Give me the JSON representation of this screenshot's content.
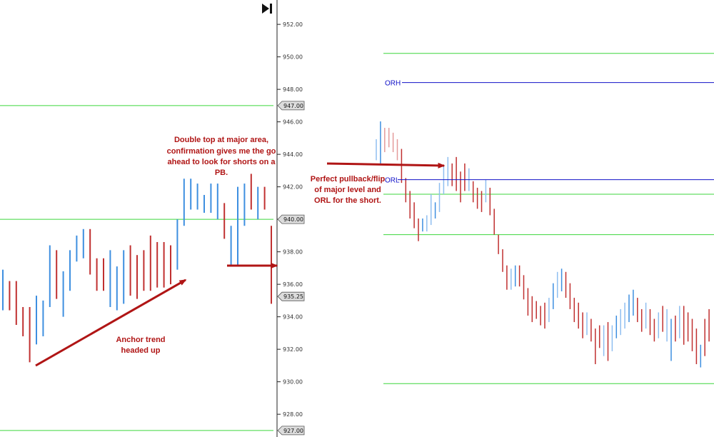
{
  "colors": {
    "up_bar": "#3e8fe0",
    "down_bar": "#c03030",
    "up_bar_light": "#8fbef0",
    "down_bar_light": "#e49a9a",
    "support_line": "#3cd63c",
    "or_line": "#1010c8",
    "annotation": "#b01515",
    "axis": "#222222"
  },
  "toolbar": {
    "icon": "skip-to-end-icon"
  },
  "chart_data": [
    {
      "type": "ohlc",
      "panel": "left",
      "y_axis": {
        "ylim": [
          926.6,
          953.5
        ],
        "ticks": [
          952,
          950,
          948,
          946,
          944,
          942,
          940,
          938,
          936,
          934,
          932,
          930,
          928
        ],
        "tick_labels": [
          "952.00",
          "950.00",
          "948.00",
          "946.00",
          "944.00",
          "942.00",
          "940.00",
          "938.00",
          "936.00",
          "934.00",
          "932.00",
          "930.00",
          "928.00"
        ]
      },
      "price_tags": [
        "947.00",
        "940.00",
        "935.25",
        "927.00"
      ],
      "horizontal_levels": [
        947.0,
        940.0,
        927.0
      ],
      "bars": [
        {
          "high": 936.9,
          "low": 934.4,
          "dir": "up"
        },
        {
          "high": 936.2,
          "low": 934.4,
          "dir": "down"
        },
        {
          "high": 936.2,
          "low": 933.5,
          "dir": "down"
        },
        {
          "high": 934.6,
          "low": 932.8,
          "dir": "down"
        },
        {
          "high": 934.6,
          "low": 931.2,
          "dir": "down"
        },
        {
          "high": 935.3,
          "low": 932.3,
          "dir": "up"
        },
        {
          "high": 935.0,
          "low": 932.8,
          "dir": "up"
        },
        {
          "high": 938.4,
          "low": 934.6,
          "dir": "up"
        },
        {
          "high": 938.1,
          "low": 935.1,
          "dir": "down"
        },
        {
          "high": 936.8,
          "low": 934.0,
          "dir": "up"
        },
        {
          "high": 938.1,
          "low": 935.6,
          "dir": "up"
        },
        {
          "high": 939.0,
          "low": 937.4,
          "dir": "up"
        },
        {
          "high": 939.4,
          "low": 937.6,
          "dir": "up"
        },
        {
          "high": 939.4,
          "low": 936.6,
          "dir": "down"
        },
        {
          "high": 937.6,
          "low": 935.6,
          "dir": "down"
        },
        {
          "high": 937.6,
          "low": 935.6,
          "dir": "down"
        },
        {
          "high": 938.1,
          "low": 934.6,
          "dir": "up"
        },
        {
          "high": 937.1,
          "low": 934.4,
          "dir": "up"
        },
        {
          "high": 938.1,
          "low": 934.8,
          "dir": "up"
        },
        {
          "high": 938.4,
          "low": 935.3,
          "dir": "down"
        },
        {
          "high": 937.8,
          "low": 935.1,
          "dir": "down"
        },
        {
          "high": 938.1,
          "low": 935.6,
          "dir": "down"
        },
        {
          "high": 939.0,
          "low": 935.6,
          "dir": "down"
        },
        {
          "high": 938.6,
          "low": 935.8,
          "dir": "down"
        },
        {
          "high": 938.6,
          "low": 935.8,
          "dir": "down"
        },
        {
          "high": 938.4,
          "low": 936.0,
          "dir": "down"
        },
        {
          "high": 940.0,
          "low": 936.9,
          "dir": "up"
        },
        {
          "high": 942.5,
          "low": 939.6,
          "dir": "up"
        },
        {
          "high": 942.5,
          "low": 940.6,
          "dir": "up"
        },
        {
          "high": 942.2,
          "low": 940.6,
          "dir": "up"
        },
        {
          "high": 941.5,
          "low": 940.4,
          "dir": "up"
        },
        {
          "high": 942.2,
          "low": 940.4,
          "dir": "up"
        },
        {
          "high": 942.2,
          "low": 940.0,
          "dir": "up"
        },
        {
          "high": 941.0,
          "low": 938.8,
          "dir": "down"
        },
        {
          "high": 939.6,
          "low": 937.1,
          "dir": "up"
        },
        {
          "high": 942.0,
          "low": 937.1,
          "dir": "up"
        },
        {
          "high": 942.2,
          "low": 939.6,
          "dir": "up"
        },
        {
          "high": 942.8,
          "low": 940.6,
          "dir": "down"
        },
        {
          "high": 942.0,
          "low": 940.0,
          "dir": "up"
        },
        {
          "high": 942.0,
          "low": 940.6,
          "dir": "down"
        },
        {
          "high": 939.6,
          "low": 934.8,
          "dir": "down"
        }
      ]
    },
    {
      "type": "ohlc",
      "panel": "right",
      "ylim": [
        926.5,
        953.5
      ],
      "horizontal_levels": [
        950.2,
        941.5,
        939.0,
        929.8
      ],
      "opening_range": [
        {
          "label": "ORH",
          "value": 948.4
        },
        {
          "label": "ORL",
          "value": 942.4
        }
      ],
      "bars": [
        {
          "high": 944.9,
          "low": 943.6,
          "dir": "up",
          "light": true
        },
        {
          "high": 946.0,
          "low": 943.4,
          "dir": "up"
        },
        {
          "high": 945.6,
          "low": 944.1,
          "dir": "down",
          "light": true
        },
        {
          "high": 945.6,
          "low": 944.4,
          "dir": "down",
          "light": true
        },
        {
          "high": 945.3,
          "low": 944.1,
          "dir": "down",
          "light": true
        },
        {
          "high": 944.9,
          "low": 943.6,
          "dir": "down",
          "light": true
        },
        {
          "high": 944.3,
          "low": 942.2,
          "dir": "down"
        },
        {
          "high": 942.5,
          "low": 941.0,
          "dir": "down"
        },
        {
          "high": 941.7,
          "low": 940.0,
          "dir": "down"
        },
        {
          "high": 941.0,
          "low": 939.4,
          "dir": "down"
        },
        {
          "high": 940.0,
          "low": 938.6,
          "dir": "down"
        },
        {
          "high": 940.0,
          "low": 939.2,
          "dir": "up"
        },
        {
          "high": 940.2,
          "low": 939.2,
          "dir": "up",
          "light": true
        },
        {
          "high": 941.5,
          "low": 939.6,
          "dir": "up",
          "light": true
        },
        {
          "high": 941.0,
          "low": 940.0,
          "dir": "up"
        },
        {
          "high": 942.2,
          "low": 940.4,
          "dir": "up",
          "light": true
        },
        {
          "high": 943.3,
          "low": 941.5,
          "dir": "up",
          "light": true
        },
        {
          "high": 943.8,
          "low": 942.0,
          "dir": "up",
          "light": true
        },
        {
          "high": 943.4,
          "low": 942.0,
          "dir": "down"
        },
        {
          "high": 943.8,
          "low": 941.7,
          "dir": "down"
        },
        {
          "high": 942.9,
          "low": 941.0,
          "dir": "down"
        },
        {
          "high": 943.4,
          "low": 941.7,
          "dir": "down"
        },
        {
          "high": 943.1,
          "low": 941.7,
          "dir": "up",
          "light": true
        },
        {
          "high": 942.3,
          "low": 941.0,
          "dir": "down"
        },
        {
          "high": 941.9,
          "low": 940.6,
          "dir": "down"
        },
        {
          "high": 941.7,
          "low": 940.4,
          "dir": "down"
        },
        {
          "high": 942.4,
          "low": 941.0,
          "dir": "up",
          "light": true
        },
        {
          "high": 941.9,
          "low": 940.2,
          "dir": "down"
        },
        {
          "high": 940.6,
          "low": 939.0,
          "dir": "down"
        },
        {
          "high": 939.0,
          "low": 937.8,
          "dir": "down"
        },
        {
          "high": 938.1,
          "low": 936.7,
          "dir": "down"
        },
        {
          "high": 937.1,
          "low": 935.6,
          "dir": "down"
        },
        {
          "high": 936.9,
          "low": 935.6,
          "dir": "up",
          "light": true
        },
        {
          "high": 937.1,
          "low": 935.8,
          "dir": "up"
        },
        {
          "high": 937.1,
          "low": 935.8,
          "dir": "down"
        },
        {
          "high": 936.5,
          "low": 935.0,
          "dir": "down"
        },
        {
          "high": 935.7,
          "low": 934.0,
          "dir": "down"
        },
        {
          "high": 935.2,
          "low": 933.6,
          "dir": "down"
        },
        {
          "high": 934.9,
          "low": 933.8,
          "dir": "down"
        },
        {
          "high": 934.6,
          "low": 933.4,
          "dir": "down"
        },
        {
          "high": 934.8,
          "low": 933.2,
          "dir": "down"
        },
        {
          "high": 935.1,
          "low": 933.6,
          "dir": "up",
          "light": true
        },
        {
          "high": 936.0,
          "low": 934.4,
          "dir": "up"
        },
        {
          "high": 936.7,
          "low": 935.1,
          "dir": "up",
          "light": true
        },
        {
          "high": 936.9,
          "low": 935.5,
          "dir": "up"
        },
        {
          "high": 936.7,
          "low": 935.1,
          "dir": "down"
        },
        {
          "high": 936.0,
          "low": 934.4,
          "dir": "down"
        },
        {
          "high": 935.1,
          "low": 933.6,
          "dir": "down"
        },
        {
          "high": 934.8,
          "low": 933.2,
          "dir": "down"
        },
        {
          "high": 934.2,
          "low": 932.6,
          "dir": "down"
        },
        {
          "high": 934.2,
          "low": 932.8,
          "dir": "up",
          "light": true
        },
        {
          "high": 933.8,
          "low": 932.4,
          "dir": "down"
        },
        {
          "high": 933.2,
          "low": 931.0,
          "dir": "down"
        },
        {
          "high": 933.4,
          "low": 932.0,
          "dir": "down"
        },
        {
          "high": 933.4,
          "low": 931.5,
          "dir": "up",
          "light": true
        },
        {
          "high": 933.6,
          "low": 931.2,
          "dir": "down"
        },
        {
          "high": 933.4,
          "low": 931.8,
          "dir": "up",
          "light": true
        },
        {
          "high": 934.0,
          "low": 932.6,
          "dir": "up"
        },
        {
          "high": 934.4,
          "low": 932.8,
          "dir": "up",
          "light": true
        },
        {
          "high": 934.8,
          "low": 933.2,
          "dir": "up",
          "light": true
        },
        {
          "high": 935.3,
          "low": 933.6,
          "dir": "up"
        },
        {
          "high": 935.6,
          "low": 934.0,
          "dir": "up"
        },
        {
          "high": 935.1,
          "low": 933.6,
          "dir": "down"
        },
        {
          "high": 934.4,
          "low": 933.0,
          "dir": "down"
        },
        {
          "high": 934.8,
          "low": 933.2,
          "dir": "up",
          "light": true
        },
        {
          "high": 934.4,
          "low": 932.8,
          "dir": "down"
        },
        {
          "high": 933.8,
          "low": 932.4,
          "dir": "down"
        },
        {
          "high": 934.2,
          "low": 932.6,
          "dir": "up",
          "light": true
        },
        {
          "high": 934.6,
          "low": 933.0,
          "dir": "down"
        },
        {
          "high": 934.4,
          "low": 932.4,
          "dir": "up",
          "light": true
        },
        {
          "high": 933.8,
          "low": 931.2,
          "dir": "up"
        },
        {
          "high": 934.0,
          "low": 932.4,
          "dir": "down"
        },
        {
          "high": 934.6,
          "low": 932.6,
          "dir": "up",
          "light": true
        },
        {
          "high": 934.6,
          "low": 932.2,
          "dir": "down"
        },
        {
          "high": 934.2,
          "low": 932.4,
          "dir": "down"
        },
        {
          "high": 933.8,
          "low": 931.8,
          "dir": "down"
        },
        {
          "high": 933.2,
          "low": 931.0,
          "dir": "down"
        },
        {
          "high": 932.2,
          "low": 930.8,
          "dir": "up"
        },
        {
          "high": 933.8,
          "low": 931.5,
          "dir": "down"
        },
        {
          "high": 934.4,
          "low": 932.4,
          "dir": "down"
        }
      ]
    }
  ],
  "annotations": [
    {
      "text_lines": [
        "Double top at major area,",
        "confirmation gives me the go",
        "ahead to look for shorts on a",
        "PB."
      ]
    },
    {
      "text_lines": [
        "Perfect pullback/flip",
        "of major level and",
        "ORL for the short."
      ]
    },
    {
      "text_lines": [
        "Anchor trend",
        "headed up"
      ]
    }
  ]
}
